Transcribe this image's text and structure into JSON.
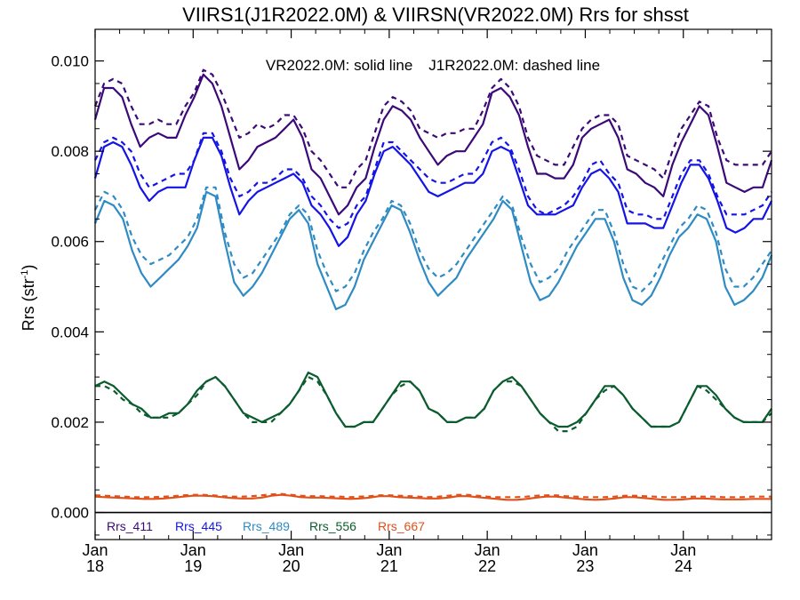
{
  "chart_data": {
    "type": "line",
    "title": "VIIRS1(J1R2022.0M) & VIIRSN(VR2022.0M)  Rrs for shsst",
    "ylabel": "Rrs (str",
    "ylabel_sup": "-1",
    "ylabel_close": ")",
    "ylim": [
      -0.0006,
      0.0107
    ],
    "yticks": [
      "0.000",
      "0.002",
      "0.004",
      "0.006",
      "0.008",
      "0.010"
    ],
    "ytick_values": [
      0,
      0.002,
      0.004,
      0.006,
      0.008,
      0.01
    ],
    "xlim": [
      2018.0,
      2024.9
    ],
    "xticks": [
      {
        "month": "Jan",
        "year": "18",
        "x": 2018
      },
      {
        "month": "Jan",
        "year": "19",
        "x": 2019
      },
      {
        "month": "Jan",
        "year": "20",
        "x": 2020
      },
      {
        "month": "Jan",
        "year": "21",
        "x": 2021
      },
      {
        "month": "Jan",
        "year": "22",
        "x": 2022
      },
      {
        "month": "Jan",
        "year": "23",
        "x": 2023
      },
      {
        "month": "Jan",
        "year": "24",
        "x": 2024
      }
    ],
    "annotation_solid": "VR2022.0M: solid line",
    "annotation_dashed": "J1R2022.0M: dashed line",
    "grid": false,
    "legend_position": "bottom",
    "zero_line": true,
    "solid_series": [
      {
        "name": "Rrs_411",
        "color": "#3c0a78",
        "key": "s411",
        "values": [
          0.0087,
          0.0094,
          0.0094,
          0.0092,
          0.0086,
          0.0081,
          0.0083,
          0.0084,
          0.0083,
          0.0083,
          0.0088,
          0.0092,
          0.0097,
          0.0095,
          0.009,
          0.0083,
          0.0076,
          0.0078,
          0.0081,
          0.0082,
          0.0083,
          0.0085,
          0.0087,
          0.0083,
          0.0076,
          0.0074,
          0.007,
          0.0066,
          0.0068,
          0.0072,
          0.0074,
          0.0081,
          0.0087,
          0.009,
          0.0089,
          0.0087,
          0.0083,
          0.008,
          0.0077,
          0.0079,
          0.008,
          0.008,
          0.0083,
          0.0086,
          0.0093,
          0.0094,
          0.0092,
          0.0088,
          0.0081,
          0.0075,
          0.0075,
          0.0074,
          0.0074,
          0.0077,
          0.0083,
          0.0085,
          0.0086,
          0.0087,
          0.0083,
          0.0076,
          0.0075,
          0.0073,
          0.0072,
          0.007,
          0.0077,
          0.0082,
          0.0086,
          0.009,
          0.0088,
          0.0081,
          0.0073,
          0.0072,
          0.0071,
          0.0072,
          0.0072,
          0.0078
        ]
      },
      {
        "name": "Rrs_445",
        "color": "#1414e6",
        "key": "s445",
        "values": [
          0.0074,
          0.0081,
          0.0082,
          0.0081,
          0.0077,
          0.0072,
          0.0069,
          0.0071,
          0.0072,
          0.0072,
          0.0072,
          0.0078,
          0.0083,
          0.0083,
          0.0079,
          0.0072,
          0.0066,
          0.0069,
          0.0071,
          0.0072,
          0.0073,
          0.0074,
          0.0075,
          0.0073,
          0.0068,
          0.0066,
          0.0063,
          0.0059,
          0.0061,
          0.0066,
          0.0069,
          0.0075,
          0.008,
          0.0081,
          0.0079,
          0.0077,
          0.0074,
          0.0071,
          0.007,
          0.0071,
          0.0072,
          0.0073,
          0.0073,
          0.0075,
          0.008,
          0.0081,
          0.008,
          0.0074,
          0.0068,
          0.0066,
          0.0066,
          0.0066,
          0.0067,
          0.0068,
          0.0072,
          0.0075,
          0.0076,
          0.0074,
          0.0071,
          0.0064,
          0.0064,
          0.0064,
          0.0063,
          0.0063,
          0.0068,
          0.0073,
          0.0077,
          0.0077,
          0.0074,
          0.0069,
          0.0063,
          0.0062,
          0.0063,
          0.0065,
          0.0065,
          0.0069
        ]
      },
      {
        "name": "Rrs_489",
        "color": "#2f8bc4",
        "key": "s489",
        "values": [
          0.0064,
          0.0069,
          0.0068,
          0.0065,
          0.0058,
          0.0053,
          0.005,
          0.0052,
          0.0054,
          0.0056,
          0.0059,
          0.0063,
          0.0071,
          0.007,
          0.006,
          0.0051,
          0.0048,
          0.005,
          0.0053,
          0.0057,
          0.0061,
          0.0065,
          0.0067,
          0.0064,
          0.0055,
          0.005,
          0.0045,
          0.0046,
          0.005,
          0.0056,
          0.006,
          0.0064,
          0.0068,
          0.0067,
          0.0062,
          0.0056,
          0.0051,
          0.0048,
          0.005,
          0.0052,
          0.0056,
          0.0059,
          0.0062,
          0.0065,
          0.0069,
          0.0067,
          0.0059,
          0.0051,
          0.0047,
          0.0048,
          0.0051,
          0.0055,
          0.0059,
          0.0062,
          0.0065,
          0.0065,
          0.006,
          0.0052,
          0.0047,
          0.0046,
          0.0048,
          0.0052,
          0.0057,
          0.0061,
          0.0063,
          0.0066,
          0.0065,
          0.006,
          0.005,
          0.0046,
          0.0047,
          0.0049,
          0.0052,
          0.0057
        ]
      },
      {
        "name": "Rrs_556",
        "color": "#0a5c2e",
        "key": "s556",
        "values": [
          0.0028,
          0.0029,
          0.0028,
          0.0026,
          0.0024,
          0.0023,
          0.0021,
          0.0021,
          0.0022,
          0.0022,
          0.0024,
          0.0027,
          0.0029,
          0.003,
          0.0028,
          0.0025,
          0.0022,
          0.0021,
          0.002,
          0.0021,
          0.0022,
          0.0024,
          0.0027,
          0.0031,
          0.003,
          0.0026,
          0.0022,
          0.0019,
          0.0019,
          0.002,
          0.002,
          0.0023,
          0.0026,
          0.0029,
          0.0029,
          0.0027,
          0.0023,
          0.0022,
          0.002,
          0.002,
          0.0021,
          0.0021,
          0.0023,
          0.0027,
          0.0029,
          0.003,
          0.0028,
          0.0025,
          0.0022,
          0.002,
          0.0019,
          0.0019,
          0.002,
          0.0022,
          0.0025,
          0.0028,
          0.0028,
          0.0026,
          0.0023,
          0.0021,
          0.0019,
          0.0019,
          0.0019,
          0.002,
          0.0024,
          0.0028,
          0.0028,
          0.0026,
          0.0023,
          0.0021,
          0.002,
          0.002,
          0.002,
          0.0023
        ]
      },
      {
        "name": "Rrs_667",
        "color": "#e0501a",
        "key": "s667",
        "values": [
          0.00035,
          0.00034,
          0.00033,
          0.00032,
          0.00031,
          0.0003,
          0.0003,
          0.00031,
          0.00033,
          0.00035,
          0.00037,
          0.00037,
          0.00036,
          0.00034,
          0.00032,
          0.00031,
          0.00031,
          0.00033,
          0.00037,
          0.00039,
          0.00037,
          0.00034,
          0.00033,
          0.00033,
          0.00032,
          0.00031,
          0.0003,
          0.00031,
          0.00033,
          0.00036,
          0.00036,
          0.00034,
          0.00033,
          0.00032,
          0.00031,
          0.00031,
          0.00033,
          0.00036,
          0.00036,
          0.00034,
          0.00032,
          0.0003,
          0.00028,
          0.00028,
          0.0003,
          0.00033,
          0.00035,
          0.00035,
          0.00033,
          0.00031,
          0.00029,
          0.00028,
          0.00029,
          0.00031,
          0.00034,
          0.00034,
          0.00032,
          0.0003,
          0.00028,
          0.00028,
          0.00029,
          0.00031,
          0.00031,
          0.0003,
          0.00029,
          0.00029,
          0.00029,
          0.0003,
          0.0003,
          0.0003
        ]
      }
    ],
    "dashed_series": [
      {
        "name": "Rrs_411",
        "color": "#3c0a78",
        "key": "d411",
        "values": [
          0.009,
          0.0095,
          0.0096,
          0.0095,
          0.009,
          0.0086,
          0.0086,
          0.0087,
          0.0086,
          0.0086,
          0.009,
          0.0093,
          0.0098,
          0.0097,
          0.0093,
          0.0088,
          0.0083,
          0.0084,
          0.0086,
          0.0085,
          0.0086,
          0.0088,
          0.0088,
          0.0085,
          0.008,
          0.0078,
          0.0075,
          0.0072,
          0.0072,
          0.0076,
          0.0078,
          0.0084,
          0.009,
          0.0092,
          0.0091,
          0.0089,
          0.0085,
          0.0084,
          0.0083,
          0.0084,
          0.0084,
          0.0085,
          0.0085,
          0.0089,
          0.0094,
          0.0096,
          0.0094,
          0.009,
          0.0083,
          0.0079,
          0.0078,
          0.0077,
          0.0077,
          0.0081,
          0.0085,
          0.0087,
          0.0088,
          0.0088,
          0.0086,
          0.0079,
          0.0078,
          0.0077,
          0.0076,
          0.0074,
          0.008,
          0.0085,
          0.0088,
          0.0091,
          0.009,
          0.0083,
          0.0078,
          0.0077,
          0.0077,
          0.0077,
          0.0077,
          0.008
        ]
      },
      {
        "name": "Rrs_445",
        "color": "#1414e6",
        "key": "d445",
        "values": [
          0.0078,
          0.0082,
          0.0083,
          0.0082,
          0.008,
          0.0075,
          0.0072,
          0.0073,
          0.0074,
          0.0075,
          0.0075,
          0.0078,
          0.0084,
          0.0084,
          0.008,
          0.0074,
          0.007,
          0.0071,
          0.0073,
          0.0073,
          0.0074,
          0.0076,
          0.0076,
          0.0074,
          0.007,
          0.0068,
          0.0065,
          0.0063,
          0.0064,
          0.0068,
          0.007,
          0.0076,
          0.0082,
          0.0082,
          0.008,
          0.0078,
          0.0076,
          0.0074,
          0.0073,
          0.0073,
          0.0074,
          0.0075,
          0.0075,
          0.0078,
          0.0082,
          0.0083,
          0.0081,
          0.0076,
          0.007,
          0.0067,
          0.0066,
          0.0067,
          0.0068,
          0.007,
          0.0073,
          0.0077,
          0.0078,
          0.0075,
          0.0073,
          0.0067,
          0.0066,
          0.0066,
          0.0065,
          0.0065,
          0.007,
          0.0075,
          0.0078,
          0.0078,
          0.0075,
          0.007,
          0.0066,
          0.0066,
          0.0066,
          0.0067,
          0.0068,
          0.0071
        ]
      },
      {
        "name": "Rrs_489",
        "color": "#2f8bc4",
        "key": "d489",
        "values": [
          0.0067,
          0.0071,
          0.007,
          0.0067,
          0.0061,
          0.0057,
          0.0055,
          0.0056,
          0.0057,
          0.0059,
          0.0061,
          0.0065,
          0.0072,
          0.0072,
          0.0062,
          0.0055,
          0.0052,
          0.0053,
          0.0056,
          0.0059,
          0.0062,
          0.0066,
          0.0068,
          0.0066,
          0.0058,
          0.0053,
          0.0049,
          0.005,
          0.0053,
          0.0058,
          0.0062,
          0.0065,
          0.0069,
          0.0068,
          0.0064,
          0.0058,
          0.0054,
          0.0052,
          0.0053,
          0.0055,
          0.0058,
          0.0061,
          0.0064,
          0.0067,
          0.007,
          0.0068,
          0.0061,
          0.0055,
          0.0051,
          0.0052,
          0.0054,
          0.0058,
          0.0061,
          0.0064,
          0.0067,
          0.0067,
          0.0062,
          0.0055,
          0.005,
          0.0049,
          0.0051,
          0.0055,
          0.0059,
          0.0063,
          0.0065,
          0.0068,
          0.0067,
          0.0062,
          0.0054,
          0.005,
          0.005,
          0.0052,
          0.0055,
          0.0058
        ]
      },
      {
        "name": "Rrs_556",
        "color": "#0a5c2e",
        "key": "d556",
        "values": [
          0.0028,
          0.0028,
          0.0027,
          0.0025,
          0.0024,
          0.0022,
          0.0021,
          0.0021,
          0.0021,
          0.0022,
          0.0024,
          0.0026,
          0.0029,
          0.003,
          0.0028,
          0.0025,
          0.0022,
          0.002,
          0.002,
          0.002,
          0.0022,
          0.0024,
          0.0027,
          0.003,
          0.0029,
          0.0026,
          0.0022,
          0.0019,
          0.0019,
          0.002,
          0.002,
          0.0023,
          0.0026,
          0.0028,
          0.0029,
          0.0027,
          0.0023,
          0.0022,
          0.002,
          0.002,
          0.0021,
          0.0021,
          0.0023,
          0.0027,
          0.0029,
          0.0029,
          0.0028,
          0.0025,
          0.0022,
          0.002,
          0.0018,
          0.0018,
          0.0019,
          0.0022,
          0.0025,
          0.0027,
          0.0028,
          0.0026,
          0.0023,
          0.0021,
          0.0019,
          0.0019,
          0.0019,
          0.002,
          0.0024,
          0.0028,
          0.0027,
          0.0025,
          0.0023,
          0.0021,
          0.002,
          0.002,
          0.002,
          0.0022
        ]
      },
      {
        "name": "Rrs_667",
        "color": "#e0501a",
        "key": "d667",
        "values": [
          0.00038,
          0.00037,
          0.00036,
          0.00035,
          0.00034,
          0.00034,
          0.00034,
          0.00035,
          0.00036,
          0.00038,
          0.00039,
          0.00039,
          0.00038,
          0.00036,
          0.00035,
          0.00035,
          0.00036,
          0.00038,
          0.0004,
          0.00041,
          0.00039,
          0.00037,
          0.00036,
          0.00036,
          0.00035,
          0.00035,
          0.00034,
          0.00035,
          0.00036,
          0.00038,
          0.00038,
          0.00037,
          0.00036,
          0.00035,
          0.00034,
          0.00035,
          0.00037,
          0.00039,
          0.00039,
          0.00037,
          0.00035,
          0.00034,
          0.00034,
          0.00034,
          0.00035,
          0.00037,
          0.00038,
          0.00038,
          0.00036,
          0.00035,
          0.00034,
          0.00034,
          0.00034,
          0.00035,
          0.00037,
          0.00037,
          0.00036,
          0.00035,
          0.00034,
          0.00034,
          0.00034,
          0.00035,
          0.00035,
          0.00035,
          0.00034,
          0.00034,
          0.00034,
          0.00035,
          0.00035,
          0.00035
        ]
      }
    ]
  }
}
